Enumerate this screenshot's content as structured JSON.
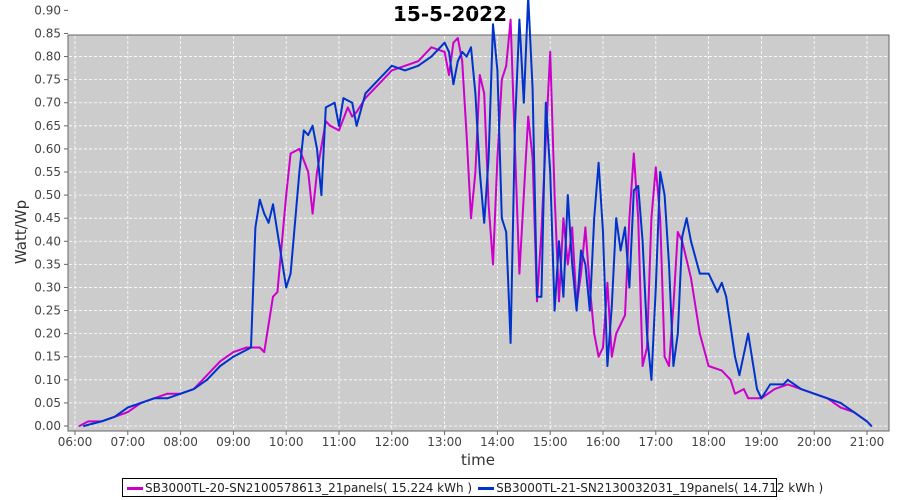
{
  "chart_data": {
    "type": "line",
    "title": "15-5-2022",
    "xlabel": "time",
    "ylabel": "Watt/Wp",
    "xlim": [
      "05:50",
      "21:30"
    ],
    "ylim": [
      0,
      0.94
    ],
    "grid": true,
    "legend_position": "bottom",
    "x_ticks": [
      "06:00",
      "07:00",
      "08:00",
      "09:00",
      "10:00",
      "11:00",
      "12:00",
      "13:00",
      "14:00",
      "15:00",
      "16:00",
      "17:00",
      "18:00",
      "19:00",
      "20:00",
      "21:00"
    ],
    "y_ticks": [
      "0.00",
      "0.05",
      "0.10",
      "0.15",
      "0.20",
      "0.25",
      "0.30",
      "0.35",
      "0.40",
      "0.45",
      "0.50",
      "0.55",
      "0.60",
      "0.65",
      "0.70",
      "0.75",
      "0.80",
      "0.85",
      "0.90"
    ],
    "series": [
      {
        "name": "SB3000TL-20-SN2100578613_21panels( 15.224 kWh )",
        "color": "#cc00cc",
        "points": [
          [
            "06:05",
            0.0
          ],
          [
            "06:15",
            0.01
          ],
          [
            "06:30",
            0.01
          ],
          [
            "06:45",
            0.02
          ],
          [
            "07:00",
            0.03
          ],
          [
            "07:15",
            0.05
          ],
          [
            "07:30",
            0.06
          ],
          [
            "07:45",
            0.07
          ],
          [
            "08:00",
            0.07
          ],
          [
            "08:15",
            0.08
          ],
          [
            "08:30",
            0.11
          ],
          [
            "08:45",
            0.14
          ],
          [
            "09:00",
            0.16
          ],
          [
            "09:15",
            0.17
          ],
          [
            "09:30",
            0.17
          ],
          [
            "09:35",
            0.16
          ],
          [
            "09:45",
            0.28
          ],
          [
            "09:50",
            0.29
          ],
          [
            "10:00",
            0.5
          ],
          [
            "10:05",
            0.59
          ],
          [
            "10:15",
            0.6
          ],
          [
            "10:25",
            0.55
          ],
          [
            "10:30",
            0.46
          ],
          [
            "10:35",
            0.55
          ],
          [
            "10:45",
            0.66
          ],
          [
            "10:50",
            0.65
          ],
          [
            "11:00",
            0.64
          ],
          [
            "11:10",
            0.69
          ],
          [
            "11:15",
            0.67
          ],
          [
            "11:20",
            0.68
          ],
          [
            "11:30",
            0.71
          ],
          [
            "11:45",
            0.74
          ],
          [
            "12:00",
            0.77
          ],
          [
            "12:15",
            0.78
          ],
          [
            "12:30",
            0.79
          ],
          [
            "12:45",
            0.82
          ],
          [
            "13:00",
            0.81
          ],
          [
            "13:05",
            0.76
          ],
          [
            "13:10",
            0.83
          ],
          [
            "13:15",
            0.84
          ],
          [
            "13:20",
            0.79
          ],
          [
            "13:25",
            0.63
          ],
          [
            "13:30",
            0.45
          ],
          [
            "13:35",
            0.55
          ],
          [
            "13:40",
            0.76
          ],
          [
            "13:45",
            0.72
          ],
          [
            "13:50",
            0.48
          ],
          [
            "13:55",
            0.35
          ],
          [
            "14:00",
            0.58
          ],
          [
            "14:05",
            0.75
          ],
          [
            "14:10",
            0.78
          ],
          [
            "14:15",
            0.88
          ],
          [
            "14:20",
            0.6
          ],
          [
            "14:25",
            0.33
          ],
          [
            "14:30",
            0.5
          ],
          [
            "14:35",
            0.67
          ],
          [
            "14:40",
            0.58
          ],
          [
            "14:45",
            0.27
          ],
          [
            "14:50",
            0.42
          ],
          [
            "14:55",
            0.62
          ],
          [
            "15:00",
            0.81
          ],
          [
            "15:05",
            0.5
          ],
          [
            "15:10",
            0.27
          ],
          [
            "15:15",
            0.45
          ],
          [
            "15:20",
            0.35
          ],
          [
            "15:25",
            0.43
          ],
          [
            "15:30",
            0.26
          ],
          [
            "15:35",
            0.33
          ],
          [
            "15:40",
            0.43
          ],
          [
            "15:45",
            0.3
          ],
          [
            "15:50",
            0.2
          ],
          [
            "15:55",
            0.15
          ],
          [
            "16:00",
            0.17
          ],
          [
            "16:05",
            0.31
          ],
          [
            "16:10",
            0.15
          ],
          [
            "16:15",
            0.2
          ],
          [
            "16:20",
            0.22
          ],
          [
            "16:25",
            0.24
          ],
          [
            "16:30",
            0.45
          ],
          [
            "16:35",
            0.59
          ],
          [
            "16:40",
            0.45
          ],
          [
            "16:45",
            0.13
          ],
          [
            "16:50",
            0.17
          ],
          [
            "16:55",
            0.45
          ],
          [
            "17:00",
            0.56
          ],
          [
            "17:05",
            0.45
          ],
          [
            "17:10",
            0.15
          ],
          [
            "17:15",
            0.13
          ],
          [
            "17:20",
            0.26
          ],
          [
            "17:25",
            0.42
          ],
          [
            "17:30",
            0.4
          ],
          [
            "17:40",
            0.32
          ],
          [
            "17:50",
            0.2
          ],
          [
            "18:00",
            0.13
          ],
          [
            "18:15",
            0.12
          ],
          [
            "18:25",
            0.1
          ],
          [
            "18:30",
            0.07
          ],
          [
            "18:40",
            0.08
          ],
          [
            "18:45",
            0.06
          ],
          [
            "19:00",
            0.06
          ],
          [
            "19:15",
            0.08
          ],
          [
            "19:30",
            0.09
          ],
          [
            "19:45",
            0.08
          ],
          [
            "20:00",
            0.07
          ],
          [
            "20:15",
            0.06
          ],
          [
            "20:30",
            0.04
          ],
          [
            "20:45",
            0.03
          ],
          [
            "21:00",
            0.01
          ]
        ]
      },
      {
        "name": "SB3000TL-21-SN2130032031_19panels( 14.712 kWh )",
        "color": "#0033cc",
        "points": [
          [
            "06:10",
            0.0
          ],
          [
            "06:30",
            0.01
          ],
          [
            "06:45",
            0.02
          ],
          [
            "07:00",
            0.04
          ],
          [
            "07:15",
            0.05
          ],
          [
            "07:30",
            0.06
          ],
          [
            "07:45",
            0.06
          ],
          [
            "08:00",
            0.07
          ],
          [
            "08:15",
            0.08
          ],
          [
            "08:30",
            0.1
          ],
          [
            "08:45",
            0.13
          ],
          [
            "09:00",
            0.15
          ],
          [
            "09:10",
            0.16
          ],
          [
            "09:20",
            0.17
          ],
          [
            "09:25",
            0.43
          ],
          [
            "09:30",
            0.49
          ],
          [
            "09:35",
            0.46
          ],
          [
            "09:40",
            0.44
          ],
          [
            "09:45",
            0.48
          ],
          [
            "09:50",
            0.42
          ],
          [
            "10:00",
            0.3
          ],
          [
            "10:05",
            0.33
          ],
          [
            "10:15",
            0.55
          ],
          [
            "10:20",
            0.64
          ],
          [
            "10:25",
            0.63
          ],
          [
            "10:30",
            0.65
          ],
          [
            "10:35",
            0.6
          ],
          [
            "10:40",
            0.5
          ],
          [
            "10:45",
            0.69
          ],
          [
            "10:55",
            0.7
          ],
          [
            "11:00",
            0.65
          ],
          [
            "11:05",
            0.71
          ],
          [
            "11:15",
            0.7
          ],
          [
            "11:20",
            0.65
          ],
          [
            "11:30",
            0.72
          ],
          [
            "11:45",
            0.75
          ],
          [
            "12:00",
            0.78
          ],
          [
            "12:15",
            0.77
          ],
          [
            "12:30",
            0.78
          ],
          [
            "12:45",
            0.8
          ],
          [
            "13:00",
            0.83
          ],
          [
            "13:05",
            0.81
          ],
          [
            "13:10",
            0.74
          ],
          [
            "13:15",
            0.79
          ],
          [
            "13:20",
            0.81
          ],
          [
            "13:25",
            0.8
          ],
          [
            "13:30",
            0.82
          ],
          [
            "13:35",
            0.72
          ],
          [
            "13:40",
            0.55
          ],
          [
            "13:45",
            0.44
          ],
          [
            "13:50",
            0.58
          ],
          [
            "13:55",
            0.87
          ],
          [
            "14:00",
            0.77
          ],
          [
            "14:05",
            0.45
          ],
          [
            "14:10",
            0.42
          ],
          [
            "14:15",
            0.18
          ],
          [
            "14:20",
            0.65
          ],
          [
            "14:25",
            0.88
          ],
          [
            "14:30",
            0.7
          ],
          [
            "14:35",
            0.93
          ],
          [
            "14:40",
            0.73
          ],
          [
            "14:45",
            0.28
          ],
          [
            "14:50",
            0.28
          ],
          [
            "14:55",
            0.7
          ],
          [
            "15:00",
            0.55
          ],
          [
            "15:05",
            0.25
          ],
          [
            "15:10",
            0.4
          ],
          [
            "15:15",
            0.28
          ],
          [
            "15:20",
            0.5
          ],
          [
            "15:25",
            0.35
          ],
          [
            "15:30",
            0.25
          ],
          [
            "15:35",
            0.38
          ],
          [
            "15:40",
            0.35
          ],
          [
            "15:45",
            0.25
          ],
          [
            "15:50",
            0.45
          ],
          [
            "15:55",
            0.57
          ],
          [
            "16:00",
            0.42
          ],
          [
            "16:05",
            0.13
          ],
          [
            "16:10",
            0.26
          ],
          [
            "16:15",
            0.45
          ],
          [
            "16:20",
            0.38
          ],
          [
            "16:25",
            0.43
          ],
          [
            "16:30",
            0.3
          ],
          [
            "16:35",
            0.51
          ],
          [
            "16:40",
            0.52
          ],
          [
            "16:45",
            0.4
          ],
          [
            "16:50",
            0.2
          ],
          [
            "16:55",
            0.1
          ],
          [
            "17:00",
            0.3
          ],
          [
            "17:05",
            0.55
          ],
          [
            "17:10",
            0.5
          ],
          [
            "17:15",
            0.35
          ],
          [
            "17:20",
            0.13
          ],
          [
            "17:25",
            0.2
          ],
          [
            "17:30",
            0.41
          ],
          [
            "17:35",
            0.45
          ],
          [
            "17:40",
            0.4
          ],
          [
            "17:50",
            0.33
          ],
          [
            "18:00",
            0.33
          ],
          [
            "18:10",
            0.29
          ],
          [
            "18:15",
            0.31
          ],
          [
            "18:20",
            0.28
          ],
          [
            "18:30",
            0.15
          ],
          [
            "18:35",
            0.11
          ],
          [
            "18:45",
            0.2
          ],
          [
            "18:50",
            0.14
          ],
          [
            "18:55",
            0.08
          ],
          [
            "19:00",
            0.06
          ],
          [
            "19:10",
            0.09
          ],
          [
            "19:25",
            0.09
          ],
          [
            "19:30",
            0.1
          ],
          [
            "19:45",
            0.08
          ],
          [
            "20:00",
            0.07
          ],
          [
            "20:15",
            0.06
          ],
          [
            "20:30",
            0.05
          ],
          [
            "20:45",
            0.03
          ],
          [
            "21:00",
            0.01
          ],
          [
            "21:05",
            0.0
          ]
        ]
      }
    ]
  }
}
